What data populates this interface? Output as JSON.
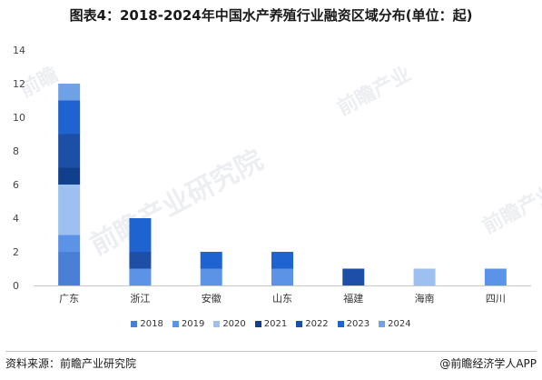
{
  "title": "图表4：2018-2024年中国水产养殖行业融资区域分布(单位：起)",
  "source": "资料来源：前瞻产业研究院",
  "brand": "@前瞻经济学人APP",
  "watermarks": [
    "前瞻产业研究院",
    "前瞻产业",
    "前瞻产业",
    "前瞻"
  ],
  "colors": {
    "2018": "#4a7fd6",
    "2019": "#5b93e6",
    "2020": "#9dc0f0",
    "2021": "#123f8c",
    "2022": "#1d4fa6",
    "2023": "#1f63d0",
    "2024": "#6fa1e6"
  },
  "chart_data": {
    "type": "bar",
    "stacked": true,
    "categories": [
      "广东",
      "浙江",
      "安徽",
      "山东",
      "福建",
      "海南",
      "四川"
    ],
    "series": [
      {
        "name": "2018",
        "values": [
          2,
          0,
          0,
          0,
          0,
          0,
          0
        ]
      },
      {
        "name": "2019",
        "values": [
          1,
          1,
          1,
          1,
          0,
          0,
          1
        ]
      },
      {
        "name": "2020",
        "values": [
          3,
          0,
          0,
          0,
          0,
          1,
          0
        ]
      },
      {
        "name": "2021",
        "values": [
          1,
          0,
          0,
          0,
          0,
          0,
          0
        ]
      },
      {
        "name": "2022",
        "values": [
          2,
          1,
          0,
          0,
          1,
          0,
          0
        ]
      },
      {
        "name": "2023",
        "values": [
          2,
          2,
          1,
          1,
          0,
          0,
          0
        ]
      },
      {
        "name": "2024",
        "values": [
          1,
          0,
          0,
          0,
          0,
          0,
          0
        ]
      }
    ],
    "yticks": [
      0,
      2,
      4,
      6,
      8,
      10,
      12,
      14
    ],
    "ylim": [
      0,
      14
    ],
    "grid": false,
    "legend": "bottom"
  }
}
